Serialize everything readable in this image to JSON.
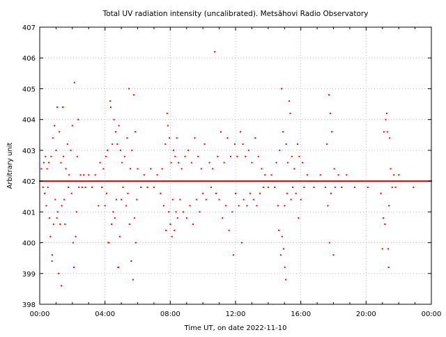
{
  "chart_data": {
    "type": "scatter",
    "title": "Total UV radiation intensity (uncalibrated). Metsähovi Radio Observatory",
    "xlabel": "Time UT, on date 2022-11-10",
    "ylabel": "Arbitrary unit",
    "xlim": [
      0,
      24
    ],
    "ylim": [
      398,
      407
    ],
    "xticks": [
      {
        "v": 0,
        "label": "00:00"
      },
      {
        "v": 4,
        "label": "04:00"
      },
      {
        "v": 8,
        "label": "08:00"
      },
      {
        "v": 12,
        "label": "12:00"
      },
      {
        "v": 16,
        "label": "16:00"
      },
      {
        "v": 20,
        "label": "20:00"
      },
      {
        "v": 24,
        "label": "00:00"
      }
    ],
    "yticks": [
      {
        "v": 398,
        "label": "398"
      },
      {
        "v": 399,
        "label": "399"
      },
      {
        "v": 400,
        "label": "400"
      },
      {
        "v": 401,
        "label": "401"
      },
      {
        "v": 402,
        "label": "402"
      },
      {
        "v": 403,
        "label": "403"
      },
      {
        "v": 404,
        "label": "404"
      },
      {
        "v": 405,
        "label": "405"
      },
      {
        "v": 406,
        "label": "406"
      },
      {
        "v": 407,
        "label": "407"
      }
    ],
    "grid": true,
    "color": "#ff0000",
    "baseline": {
      "value": 402,
      "x_range": [
        0,
        24
      ],
      "step_h": 0.05
    },
    "points": [
      [
        0.1,
        402.4
      ],
      [
        0.2,
        401.8
      ],
      [
        0.25,
        402.6
      ],
      [
        0.3,
        401.6
      ],
      [
        0.35,
        402.8
      ],
      [
        0.4,
        401.2
      ],
      [
        0.45,
        402.4
      ],
      [
        0.5,
        401.8
      ],
      [
        0.55,
        402.6
      ],
      [
        0.6,
        400.8
      ],
      [
        0.65,
        400.2
      ],
      [
        0.7,
        402.8
      ],
      [
        0.75,
        399.4
      ],
      [
        0.77,
        399.6
      ],
      [
        0.8,
        403.4
      ],
      [
        0.85,
        400.6
      ],
      [
        0.9,
        403.8
      ],
      [
        0.95,
        401.4
      ],
      [
        1.0,
        403.0
      ],
      [
        1.05,
        400.8
      ],
      [
        1.07,
        404.4
      ],
      [
        1.1,
        401.0
      ],
      [
        1.15,
        399.0
      ],
      [
        1.2,
        403.6
      ],
      [
        1.25,
        400.6
      ],
      [
        1.3,
        402.6
      ],
      [
        1.32,
        398.6
      ],
      [
        1.35,
        401.2
      ],
      [
        1.41,
        404.4
      ],
      [
        1.45,
        402.8
      ],
      [
        1.5,
        401.4
      ],
      [
        1.55,
        400.6
      ],
      [
        1.6,
        402.4
      ],
      [
        1.7,
        403.2
      ],
      [
        1.75,
        401.8
      ],
      [
        1.8,
        402.2
      ],
      [
        1.9,
        403.0
      ],
      [
        1.95,
        401.6
      ],
      [
        2.0,
        403.8
      ],
      [
        2.05,
        400.0
      ],
      [
        2.09,
        399.2
      ],
      [
        2.13,
        405.2
      ],
      [
        2.2,
        400.2
      ],
      [
        2.25,
        401.0
      ],
      [
        2.3,
        402.8
      ],
      [
        2.35,
        404.0
      ],
      [
        2.4,
        401.8
      ],
      [
        2.5,
        402.2
      ],
      [
        2.6,
        401.8
      ],
      [
        2.7,
        402.2
      ],
      [
        2.8,
        401.8
      ],
      [
        3.0,
        402.2
      ],
      [
        3.2,
        401.8
      ],
      [
        3.4,
        402.2
      ],
      [
        3.6,
        401.2
      ],
      [
        3.7,
        402.6
      ],
      [
        3.8,
        401.8
      ],
      [
        3.9,
        402.4
      ],
      [
        4.0,
        401.2
      ],
      [
        4.05,
        402.8
      ],
      [
        4.1,
        401.6
      ],
      [
        4.15,
        403.0
      ],
      [
        4.2,
        400.0
      ],
      [
        4.23,
        400.0
      ],
      [
        4.31,
        404.6
      ],
      [
        4.35,
        404.4
      ],
      [
        4.4,
        400.6
      ],
      [
        4.45,
        403.2
      ],
      [
        4.5,
        401.0
      ],
      [
        4.55,
        404.0
      ],
      [
        4.6,
        400.8
      ],
      [
        4.65,
        403.6
      ],
      [
        4.7,
        401.4
      ],
      [
        4.75,
        403.2
      ],
      [
        4.8,
        399.2
      ],
      [
        4.82,
        399.2
      ],
      [
        4.85,
        403.8
      ],
      [
        4.9,
        400.2
      ],
      [
        4.95,
        403.0
      ],
      [
        5.0,
        401.4
      ],
      [
        5.05,
        402.6
      ],
      [
        5.1,
        401.8
      ],
      [
        5.2,
        402.8
      ],
      [
        5.3,
        401.2
      ],
      [
        5.35,
        403.4
      ],
      [
        5.4,
        401.6
      ],
      [
        5.47,
        405.0
      ],
      [
        5.5,
        400.6
      ],
      [
        5.55,
        402.4
      ],
      [
        5.6,
        399.4
      ],
      [
        5.65,
        403.0
      ],
      [
        5.72,
        398.8
      ],
      [
        5.76,
        404.8
      ],
      [
        5.8,
        400.8
      ],
      [
        5.85,
        403.6
      ],
      [
        5.89,
        400.0
      ],
      [
        5.95,
        401.4
      ],
      [
        6.0,
        402.4
      ],
      [
        6.2,
        401.8
      ],
      [
        6.4,
        402.2
      ],
      [
        6.6,
        401.8
      ],
      [
        6.8,
        402.4
      ],
      [
        7.0,
        401.8
      ],
      [
        7.2,
        402.2
      ],
      [
        7.4,
        401.6
      ],
      [
        7.5,
        402.4
      ],
      [
        7.6,
        401.2
      ],
      [
        7.7,
        403.2
      ],
      [
        7.73,
        400.4
      ],
      [
        7.81,
        404.2
      ],
      [
        7.85,
        403.8
      ],
      [
        7.9,
        401.0
      ],
      [
        7.95,
        403.4
      ],
      [
        8.0,
        400.6
      ],
      [
        8.05,
        402.6
      ],
      [
        8.1,
        400.2
      ],
      [
        8.15,
        401.4
      ],
      [
        8.2,
        403.0
      ],
      [
        8.25,
        400.4
      ],
      [
        8.3,
        402.8
      ],
      [
        8.35,
        401.0
      ],
      [
        8.4,
        403.4
      ],
      [
        8.45,
        400.8
      ],
      [
        8.5,
        402.6
      ],
      [
        8.6,
        401.4
      ],
      [
        8.7,
        402.4
      ],
      [
        8.8,
        401.0
      ],
      [
        8.9,
        402.8
      ],
      [
        9.0,
        400.8
      ],
      [
        9.1,
        403.0
      ],
      [
        9.2,
        401.2
      ],
      [
        9.3,
        402.6
      ],
      [
        9.4,
        400.6
      ],
      [
        9.5,
        403.4
      ],
      [
        9.6,
        401.4
      ],
      [
        9.7,
        402.8
      ],
      [
        9.8,
        401.0
      ],
      [
        9.9,
        402.4
      ],
      [
        10.0,
        401.6
      ],
      [
        10.1,
        403.2
      ],
      [
        10.2,
        401.4
      ],
      [
        10.4,
        402.6
      ],
      [
        10.5,
        401.8
      ],
      [
        10.6,
        402.4
      ],
      [
        10.72,
        406.2
      ],
      [
        10.8,
        401.6
      ],
      [
        10.9,
        402.8
      ],
      [
        11.0,
        401.4
      ],
      [
        11.1,
        403.6
      ],
      [
        11.2,
        400.8
      ],
      [
        11.3,
        402.6
      ],
      [
        11.4,
        401.2
      ],
      [
        11.5,
        403.4
      ],
      [
        11.6,
        400.4
      ],
      [
        11.7,
        402.8
      ],
      [
        11.8,
        401.0
      ],
      [
        11.87,
        399.6
      ],
      [
        11.95,
        403.2
      ],
      [
        12.0,
        401.6
      ],
      [
        12.1,
        402.8
      ],
      [
        12.2,
        401.2
      ],
      [
        12.3,
        403.6
      ],
      [
        12.38,
        400.0
      ],
      [
        12.45,
        403.2
      ],
      [
        12.5,
        401.4
      ],
      [
        12.6,
        402.8
      ],
      [
        12.7,
        401.2
      ],
      [
        12.8,
        403.0
      ],
      [
        12.9,
        401.6
      ],
      [
        13.0,
        402.6
      ],
      [
        13.1,
        401.4
      ],
      [
        13.2,
        403.4
      ],
      [
        13.3,
        401.2
      ],
      [
        13.4,
        402.8
      ],
      [
        13.5,
        401.6
      ],
      [
        13.6,
        402.4
      ],
      [
        13.7,
        401.8
      ],
      [
        13.8,
        402.2
      ],
      [
        14.0,
        401.8
      ],
      [
        14.2,
        402.2
      ],
      [
        14.4,
        401.8
      ],
      [
        14.5,
        402.6
      ],
      [
        14.6,
        401.2
      ],
      [
        14.65,
        400.4
      ],
      [
        14.7,
        403.0
      ],
      [
        14.77,
        399.6
      ],
      [
        14.82,
        405.0
      ],
      [
        14.85,
        400.2
      ],
      [
        14.9,
        403.6
      ],
      [
        14.95,
        399.8
      ],
      [
        15.0,
        401.2
      ],
      [
        15.02,
        399.2
      ],
      [
        15.07,
        398.8
      ],
      [
        15.1,
        403.2
      ],
      [
        15.15,
        401.6
      ],
      [
        15.2,
        402.6
      ],
      [
        15.29,
        404.6
      ],
      [
        15.35,
        404.2
      ],
      [
        15.4,
        401.4
      ],
      [
        15.45,
        402.8
      ],
      [
        15.5,
        401.8
      ],
      [
        15.6,
        402.4
      ],
      [
        15.7,
        401.6
      ],
      [
        15.8,
        403.2
      ],
      [
        15.85,
        400.8
      ],
      [
        15.9,
        402.8
      ],
      [
        16.0,
        401.4
      ],
      [
        16.1,
        402.6
      ],
      [
        16.2,
        401.8
      ],
      [
        16.4,
        402.2
      ],
      [
        16.8,
        401.8
      ],
      [
        17.2,
        402.2
      ],
      [
        17.5,
        401.8
      ],
      [
        17.6,
        403.2
      ],
      [
        17.65,
        401.2
      ],
      [
        17.72,
        404.8
      ],
      [
        17.76,
        400.0
      ],
      [
        17.8,
        404.2
      ],
      [
        17.85,
        401.6
      ],
      [
        17.9,
        403.6
      ],
      [
        18.0,
        399.6
      ],
      [
        18.05,
        402.4
      ],
      [
        18.1,
        401.8
      ],
      [
        18.3,
        402.2
      ],
      [
        18.5,
        401.8
      ],
      [
        18.8,
        402.2
      ],
      [
        19.3,
        401.8
      ],
      [
        20.1,
        401.8
      ],
      [
        20.9,
        401.6
      ],
      [
        21.0,
        399.8
      ],
      [
        21.05,
        400.8
      ],
      [
        21.1,
        403.6
      ],
      [
        21.15,
        400.6
      ],
      [
        21.2,
        404.0
      ],
      [
        21.26,
        404.2
      ],
      [
        21.3,
        403.6
      ],
      [
        21.35,
        399.8
      ],
      [
        21.38,
        399.2
      ],
      [
        21.4,
        401.2
      ],
      [
        21.45,
        403.4
      ],
      [
        21.5,
        402.4
      ],
      [
        21.6,
        401.8
      ],
      [
        21.7,
        402.2
      ],
      [
        21.8,
        401.8
      ],
      [
        22.0,
        402.2
      ],
      [
        22.9,
        401.8
      ]
    ]
  }
}
